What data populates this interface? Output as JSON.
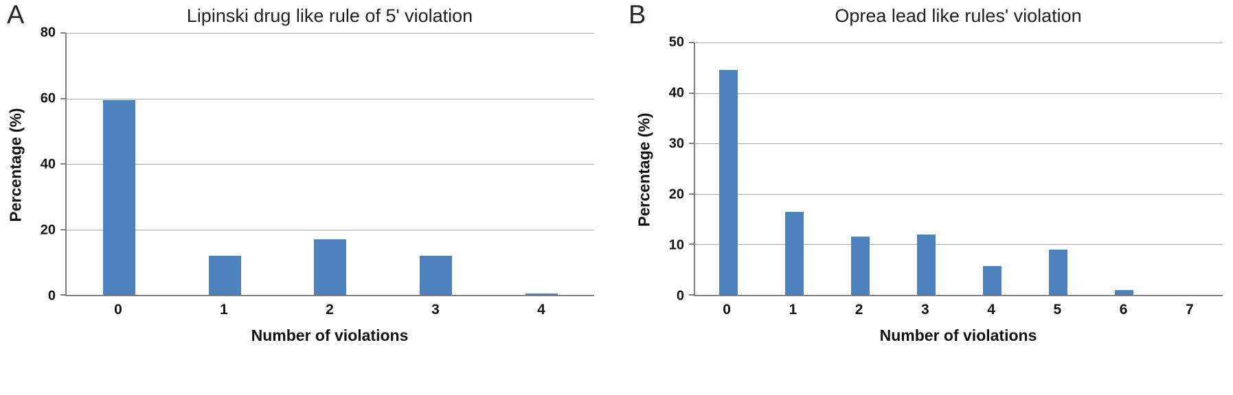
{
  "panels": [
    {
      "label": "A"
    },
    {
      "label": "B"
    }
  ],
  "chart_data": [
    {
      "type": "bar",
      "title": "Lipinski drug like rule of 5' violation",
      "categories": [
        "0",
        "1",
        "2",
        "3",
        "4"
      ],
      "values": [
        59.5,
        12,
        17,
        12,
        0.5
      ],
      "xlabel": "Number of violations",
      "ylabel": "Percentage (%)",
      "ylim": [
        0,
        80
      ],
      "ytick_step": 20,
      "grid": true,
      "legend": "none",
      "bar_color": "#4d81bd"
    },
    {
      "type": "bar",
      "title": "Oprea lead like rules' violation",
      "categories": [
        "0",
        "1",
        "2",
        "3",
        "4",
        "5",
        "6",
        "7"
      ],
      "values": [
        44.5,
        16.5,
        11.5,
        12,
        5.7,
        9,
        1,
        0
      ],
      "xlabel": "Number of violations",
      "ylabel": "Percentage (%)",
      "ylim": [
        0,
        50
      ],
      "ytick_step": 10,
      "grid": true,
      "legend": "none",
      "bar_color": "#4d81bd"
    }
  ]
}
